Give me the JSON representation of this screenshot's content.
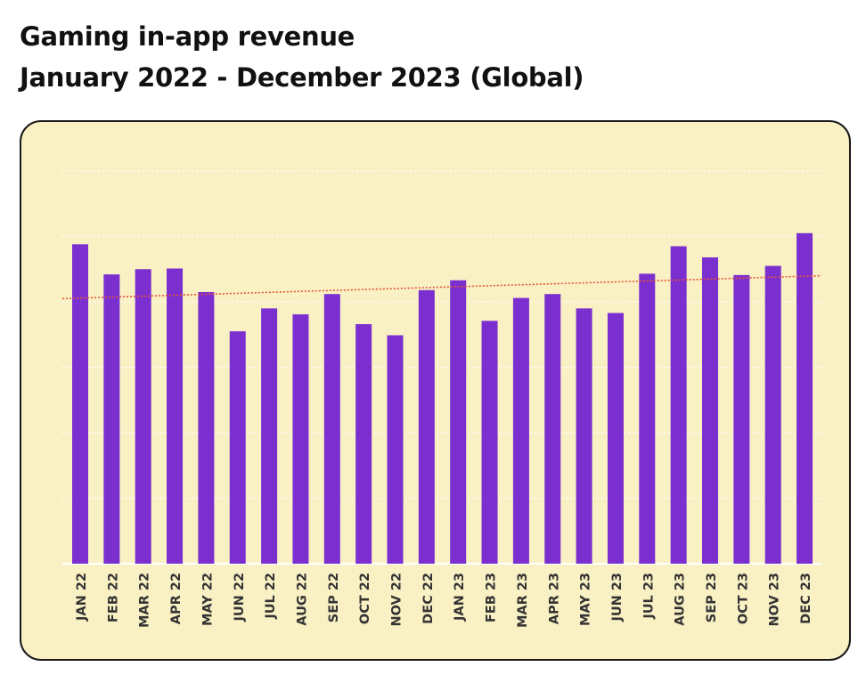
{
  "chart_data": {
    "type": "bar",
    "title": "Gaming in-app revenue",
    "subtitle": "January 2022 - December 2023 (Global)",
    "xlabel": "",
    "ylabel": "",
    "categories": [
      "JAN 22",
      "FEB 22",
      "MAR 22",
      "APR 22",
      "MAY 22",
      "JUN 22",
      "JUL 22",
      "AUG 22",
      "SEP 22",
      "OCT 22",
      "NOV 22",
      "DEC 22",
      "JAN 23",
      "FEB 23",
      "MAR 23",
      "APR 23",
      "MAY 23",
      "JUN 23",
      "JUL 23",
      "AUG 23",
      "SEP 23",
      "OCT 23",
      "NOV 23",
      "DEC 23"
    ],
    "values": [
      4.88,
      4.42,
      4.5,
      4.51,
      4.15,
      3.55,
      3.9,
      3.81,
      4.12,
      3.66,
      3.49,
      4.18,
      4.33,
      3.71,
      4.06,
      4.12,
      3.9,
      3.83,
      4.43,
      4.85,
      4.68,
      4.41,
      4.55,
      5.05
    ],
    "ylim": [
      0,
      6
    ],
    "grid": true,
    "legend": "none",
    "trendline": {
      "type": "linear",
      "start": 4.05,
      "end": 4.4
    },
    "colors": {
      "bar": "#7b2fcf",
      "trend": "#e8553a",
      "panel": "#f9f0c4",
      "grid": "#ffffff"
    }
  }
}
